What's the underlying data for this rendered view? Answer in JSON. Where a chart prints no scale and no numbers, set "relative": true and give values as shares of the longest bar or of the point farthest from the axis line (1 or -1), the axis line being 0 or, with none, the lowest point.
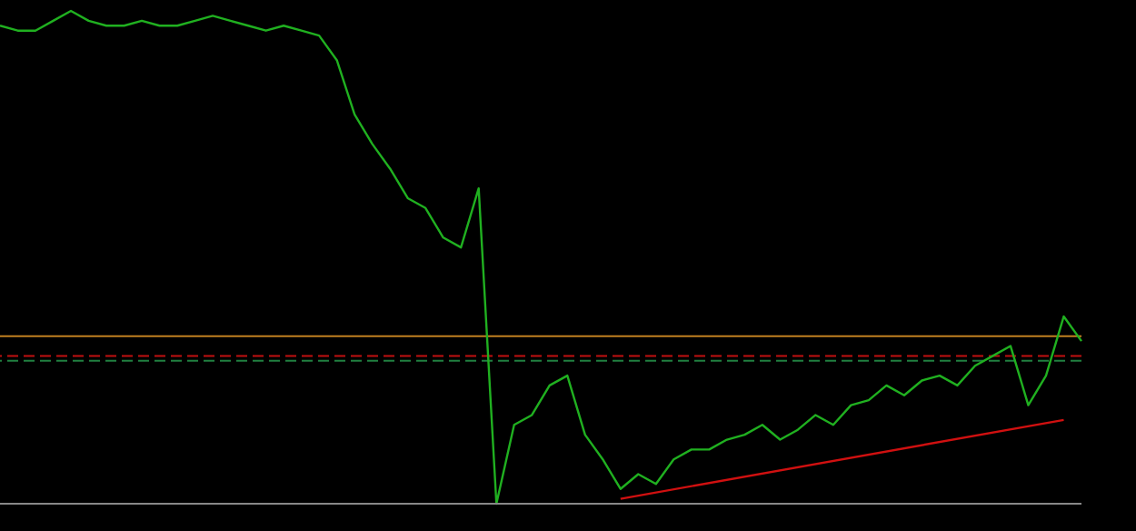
{
  "chart_data": {
    "type": "line",
    "relative": true,
    "tick_labels": false,
    "grid": false,
    "legend": false,
    "marker": "none",
    "categories": [
      null,
      null,
      null,
      null,
      null,
      null,
      null,
      null,
      null,
      null,
      null,
      null,
      null,
      null,
      null,
      null,
      null,
      null,
      null,
      null,
      null,
      null,
      null,
      null,
      null,
      null,
      null,
      null,
      null,
      null,
      null,
      null,
      null,
      null,
      null,
      null,
      null,
      null,
      null,
      null,
      null,
      null,
      null,
      null,
      null,
      null,
      null,
      null,
      null,
      null,
      null,
      null,
      null,
      null,
      null,
      null,
      null,
      null,
      null,
      null,
      null,
      null
    ],
    "series": [
      {
        "color": "#20b020",
        "line_style": "solid",
        "values": [
          0.97,
          0.96,
          0.96,
          0.98,
          1,
          0.98,
          0.97,
          0.97,
          0.98,
          0.97,
          0.97,
          0.98,
          0.99,
          0.98,
          0.97,
          0.96,
          0.97,
          0.96,
          0.95,
          0.9,
          0.79,
          0.73,
          0.68,
          0.62,
          0.6,
          0.54,
          0.52,
          0.64,
          0,
          0.16,
          0.18,
          0.24,
          0.26,
          0.14,
          0.09,
          0.03,
          0.06,
          0.04,
          0.09,
          0.11,
          0.11,
          0.13,
          0.14,
          0.16,
          0.13,
          0.15,
          0.18,
          0.16,
          0.2,
          0.21,
          0.24,
          0.22,
          0.25,
          0.26,
          0.24,
          0.28,
          0.3,
          0.32,
          0.2,
          0.26,
          0.38,
          0.33
        ]
      },
      {
        "color": "#d01010",
        "line_style": "solid",
        "values": [
          null,
          null,
          null,
          null,
          null,
          null,
          null,
          null,
          null,
          null,
          null,
          null,
          null,
          null,
          null,
          null,
          null,
          null,
          null,
          null,
          null,
          null,
          null,
          null,
          null,
          null,
          null,
          null,
          null,
          null,
          null,
          null,
          null,
          null,
          null,
          0.01,
          null,
          null,
          null,
          null,
          null,
          null,
          null,
          null,
          null,
          null,
          null,
          null,
          null,
          null,
          null,
          null,
          null,
          null,
          null,
          null,
          null,
          null,
          null,
          null,
          0.17,
          null
        ]
      }
    ],
    "ref_lines": [
      {
        "axis": "y",
        "value": 0.34,
        "color": "#c08020",
        "line_style": "solid"
      },
      {
        "axis": "y",
        "value": 0.3,
        "color": "#c01010",
        "line_style": "dashed"
      },
      {
        "axis": "y",
        "value": 0.29,
        "color": "#208040",
        "line_style": "dashed"
      }
    ]
  }
}
